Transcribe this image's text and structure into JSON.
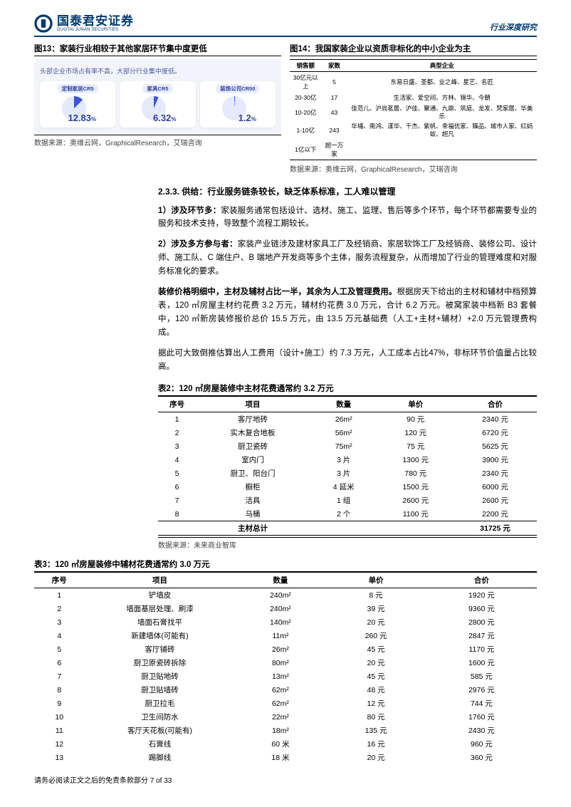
{
  "header": {
    "logo_cn": "国泰君安证券",
    "logo_en": "GUOTAI JUNAN SECURITIES",
    "right": "行业深度研究"
  },
  "colors": {
    "brand": "#003a70",
    "fig13_bg": "#f2f4fb",
    "fig13_accent": "#2b3fa0",
    "pie_fill": "#3b56d8",
    "pie_rest": "#e4e9fb"
  },
  "fig13": {
    "title": "图13：家装行业相较于其他家居环节集中度更低",
    "caption": "头部企业市场占有率不高，大部分行业集中度低。",
    "cards": [
      {
        "label": "定制家居CR5",
        "value": "12.83",
        "pct_num": 12.83
      },
      {
        "label": "家具CR5",
        "value": "6.32",
        "pct_num": 6.32
      },
      {
        "label": "装饰公司CR50",
        "value": "1.2",
        "pct_num": 1.2
      }
    ],
    "source": "数据来源：奥维云网，GraphicalResearch，艾瑞咨询"
  },
  "fig14": {
    "title": "图14：我国家装企业以资质非标化的中小企业为主",
    "columns": [
      "销售额",
      "家数",
      "典型企业"
    ],
    "rows": [
      {
        "r": "30亿元以上",
        "n": "5",
        "b": "东易日盛、圣都、业之峰、星艺、名匠"
      },
      {
        "r": "20-30亿",
        "n": "17",
        "b": "生活家、爱空间、方林、锦华、今朝"
      },
      {
        "r": "10-20亿",
        "n": "43",
        "b": "佳范儿、沪尚茗居、沪佳、聚通、九鼎、筑庭、龙发、梵家居、华美乐"
      },
      {
        "r": "1-10亿",
        "n": "243",
        "b": "华埔、南鸿、漾华、千杰、紫帆、幸福优家、臻品、城市人家、红蚂蚁、超凡"
      },
      {
        "r": "1亿以下",
        "n": "超一万家",
        "b": ""
      }
    ],
    "source": "数据来源：奥维云网，GraphicalResearch，艾瑞咨询"
  },
  "section233": {
    "heading": "2.3.3. 供给：行业服务链条较长，缺乏体系标准，工人难以管理",
    "p1_lead": "1）涉及环节多：",
    "p1": "家装服务通常包括设计、选材、施工、监理、售后等多个环节，每个环节都需要专业的服务和技术支持，导致整个流程工期较长。",
    "p2_lead": "2）涉及多方参与者：",
    "p2": "家装产业链涉及建材家具工厂及经销商、家居软饰工厂及经销商、装修公司、设计师、施工队、C 端住户、B 端地产开发商等多个主体，服务流程复杂，从而增加了行业的管理难度和对服务标准化的要求。",
    "p3_lead": "装修价格明细中，主材及辅材占比一半，其余为人工及管理费用。",
    "p3": "根据房天下给出的主材和辅材中档预算表，120 ㎡房屋主材约花费 3.2 万元，辅材约花费 3.0 万元，合计 6.2 万元。被窝家装中档新 B3 套餐中，120 ㎡新房装修报价总价 15.5 万元，由 13.5 万元基础费（人工+主材+辅材）+2.0 万元管理费构成。",
    "p4": "据此可大致倒推估算出人工费用（设计+施工）约 7.3 万元，人工成本占比47%，非标环节价值量占比较高。"
  },
  "table2": {
    "title": "表2：120 ㎡房屋装修中主材花费通常约 3.2 万元",
    "columns": [
      "序号",
      "项目",
      "数量",
      "单价",
      "合价"
    ],
    "rows": [
      [
        "1",
        "客厅地砖",
        "26m²",
        "90 元",
        "2340 元"
      ],
      [
        "2",
        "实木复合地板",
        "56m²",
        "120 元",
        "6720 元"
      ],
      [
        "3",
        "厨卫瓷砖",
        "75m²",
        "75 元",
        "5625 元"
      ],
      [
        "4",
        "室内门",
        "3 片",
        "1300 元",
        "3900 元"
      ],
      [
        "5",
        "厨卫、阳台门",
        "3 片",
        "780 元",
        "2340 元"
      ],
      [
        "6",
        "橱柜",
        "4 延米",
        "1500 元",
        "6000 元"
      ],
      [
        "7",
        "洁具",
        "1 组",
        "2600 元",
        "2600 元"
      ],
      [
        "8",
        "马桶",
        "2 个",
        "1100 元",
        "2200 元"
      ]
    ],
    "total_label": "主材总计",
    "total_value": "31725 元",
    "source": "数据来源：未来商业智库"
  },
  "table3": {
    "title": "表3：120 ㎡房屋装修中辅材花费通常约 3.0 万元",
    "columns": [
      "序号",
      "项目",
      "数量",
      "单价",
      "合价"
    ],
    "rows": [
      [
        "1",
        "铲墙皮",
        "240m²",
        "8 元",
        "1920 元"
      ],
      [
        "2",
        "墙面基层处理、刷漆",
        "240m²",
        "39 元",
        "9360 元"
      ],
      [
        "3",
        "墙面石膏找平",
        "140m²",
        "20 元",
        "2800 元"
      ],
      [
        "4",
        "新建墙体(可能有)",
        "11m²",
        "260 元",
        "2847 元"
      ],
      [
        "5",
        "客厅铺砖",
        "26m²",
        "45 元",
        "1170 元"
      ],
      [
        "6",
        "厨卫原瓷砖拆除",
        "80m²",
        "20 元",
        "1600 元"
      ],
      [
        "7",
        "厨卫贴地砖",
        "13m²",
        "45 元",
        "585 元"
      ],
      [
        "8",
        "厨卫贴墙砖",
        "62m²",
        "48 元",
        "2976 元"
      ],
      [
        "9",
        "厨卫拉毛",
        "62m²",
        "12 元",
        "744 元"
      ],
      [
        "10",
        "卫生间防水",
        "22m²",
        "80 元",
        "1760 元"
      ],
      [
        "11",
        "客厅天花板(可能有)",
        "18m²",
        "135 元",
        "2430 元"
      ],
      [
        "12",
        "石膏线",
        "60 米",
        "16 元",
        "960 元"
      ],
      [
        "13",
        "踢脚线",
        "18 米",
        "20 元",
        "360 元"
      ]
    ]
  },
  "footer": "请务必阅读正文之后的免责条款部分 7 of 33"
}
